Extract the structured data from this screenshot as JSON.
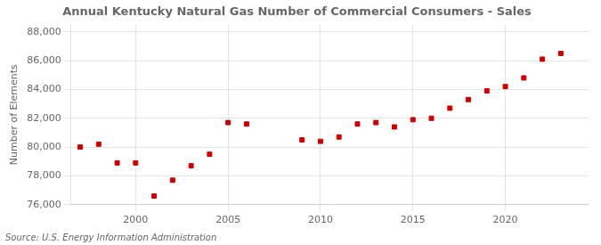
{
  "chart_data": {
    "type": "scatter",
    "title": "Annual Kentucky Natural Gas Number of Commercial Consumers - Sales",
    "ylabel": "Number of Elements",
    "annotation": "Source: U.S. Energy Information Administration",
    "x": [
      1997,
      1998,
      1999,
      2000,
      2001,
      2002,
      2003,
      2004,
      2005,
      2006,
      2009,
      2010,
      2011,
      2012,
      2013,
      2014,
      2015,
      2016,
      2017,
      2018,
      2019,
      2020,
      2021,
      2022,
      2023
    ],
    "values": [
      80000,
      80200,
      78900,
      78900,
      76600,
      77700,
      78700,
      79500,
      81700,
      81600,
      80500,
      80400,
      80700,
      81600,
      81700,
      81400,
      81900,
      82000,
      82700,
      83300,
      83900,
      84200,
      84800,
      86100,
      86500
    ],
    "color": "#cc0000",
    "marker": "square",
    "xlim": [
      1996.5,
      2024.5
    ],
    "xticks": [
      2000,
      2005,
      2010,
      2015,
      2020
    ],
    "ylim": [
      76000,
      88500
    ],
    "yticks": [
      {
        "value": 76000,
        "label": "76,000"
      },
      {
        "value": 78000,
        "label": "78,000"
      },
      {
        "value": 80000,
        "label": "80,000"
      },
      {
        "value": 82000,
        "label": "82,000"
      },
      {
        "value": 84000,
        "label": "84,000"
      },
      {
        "value": 86000,
        "label": "86,000"
      },
      {
        "value": 88000,
        "label": "88,000"
      }
    ],
    "grid": true
  }
}
